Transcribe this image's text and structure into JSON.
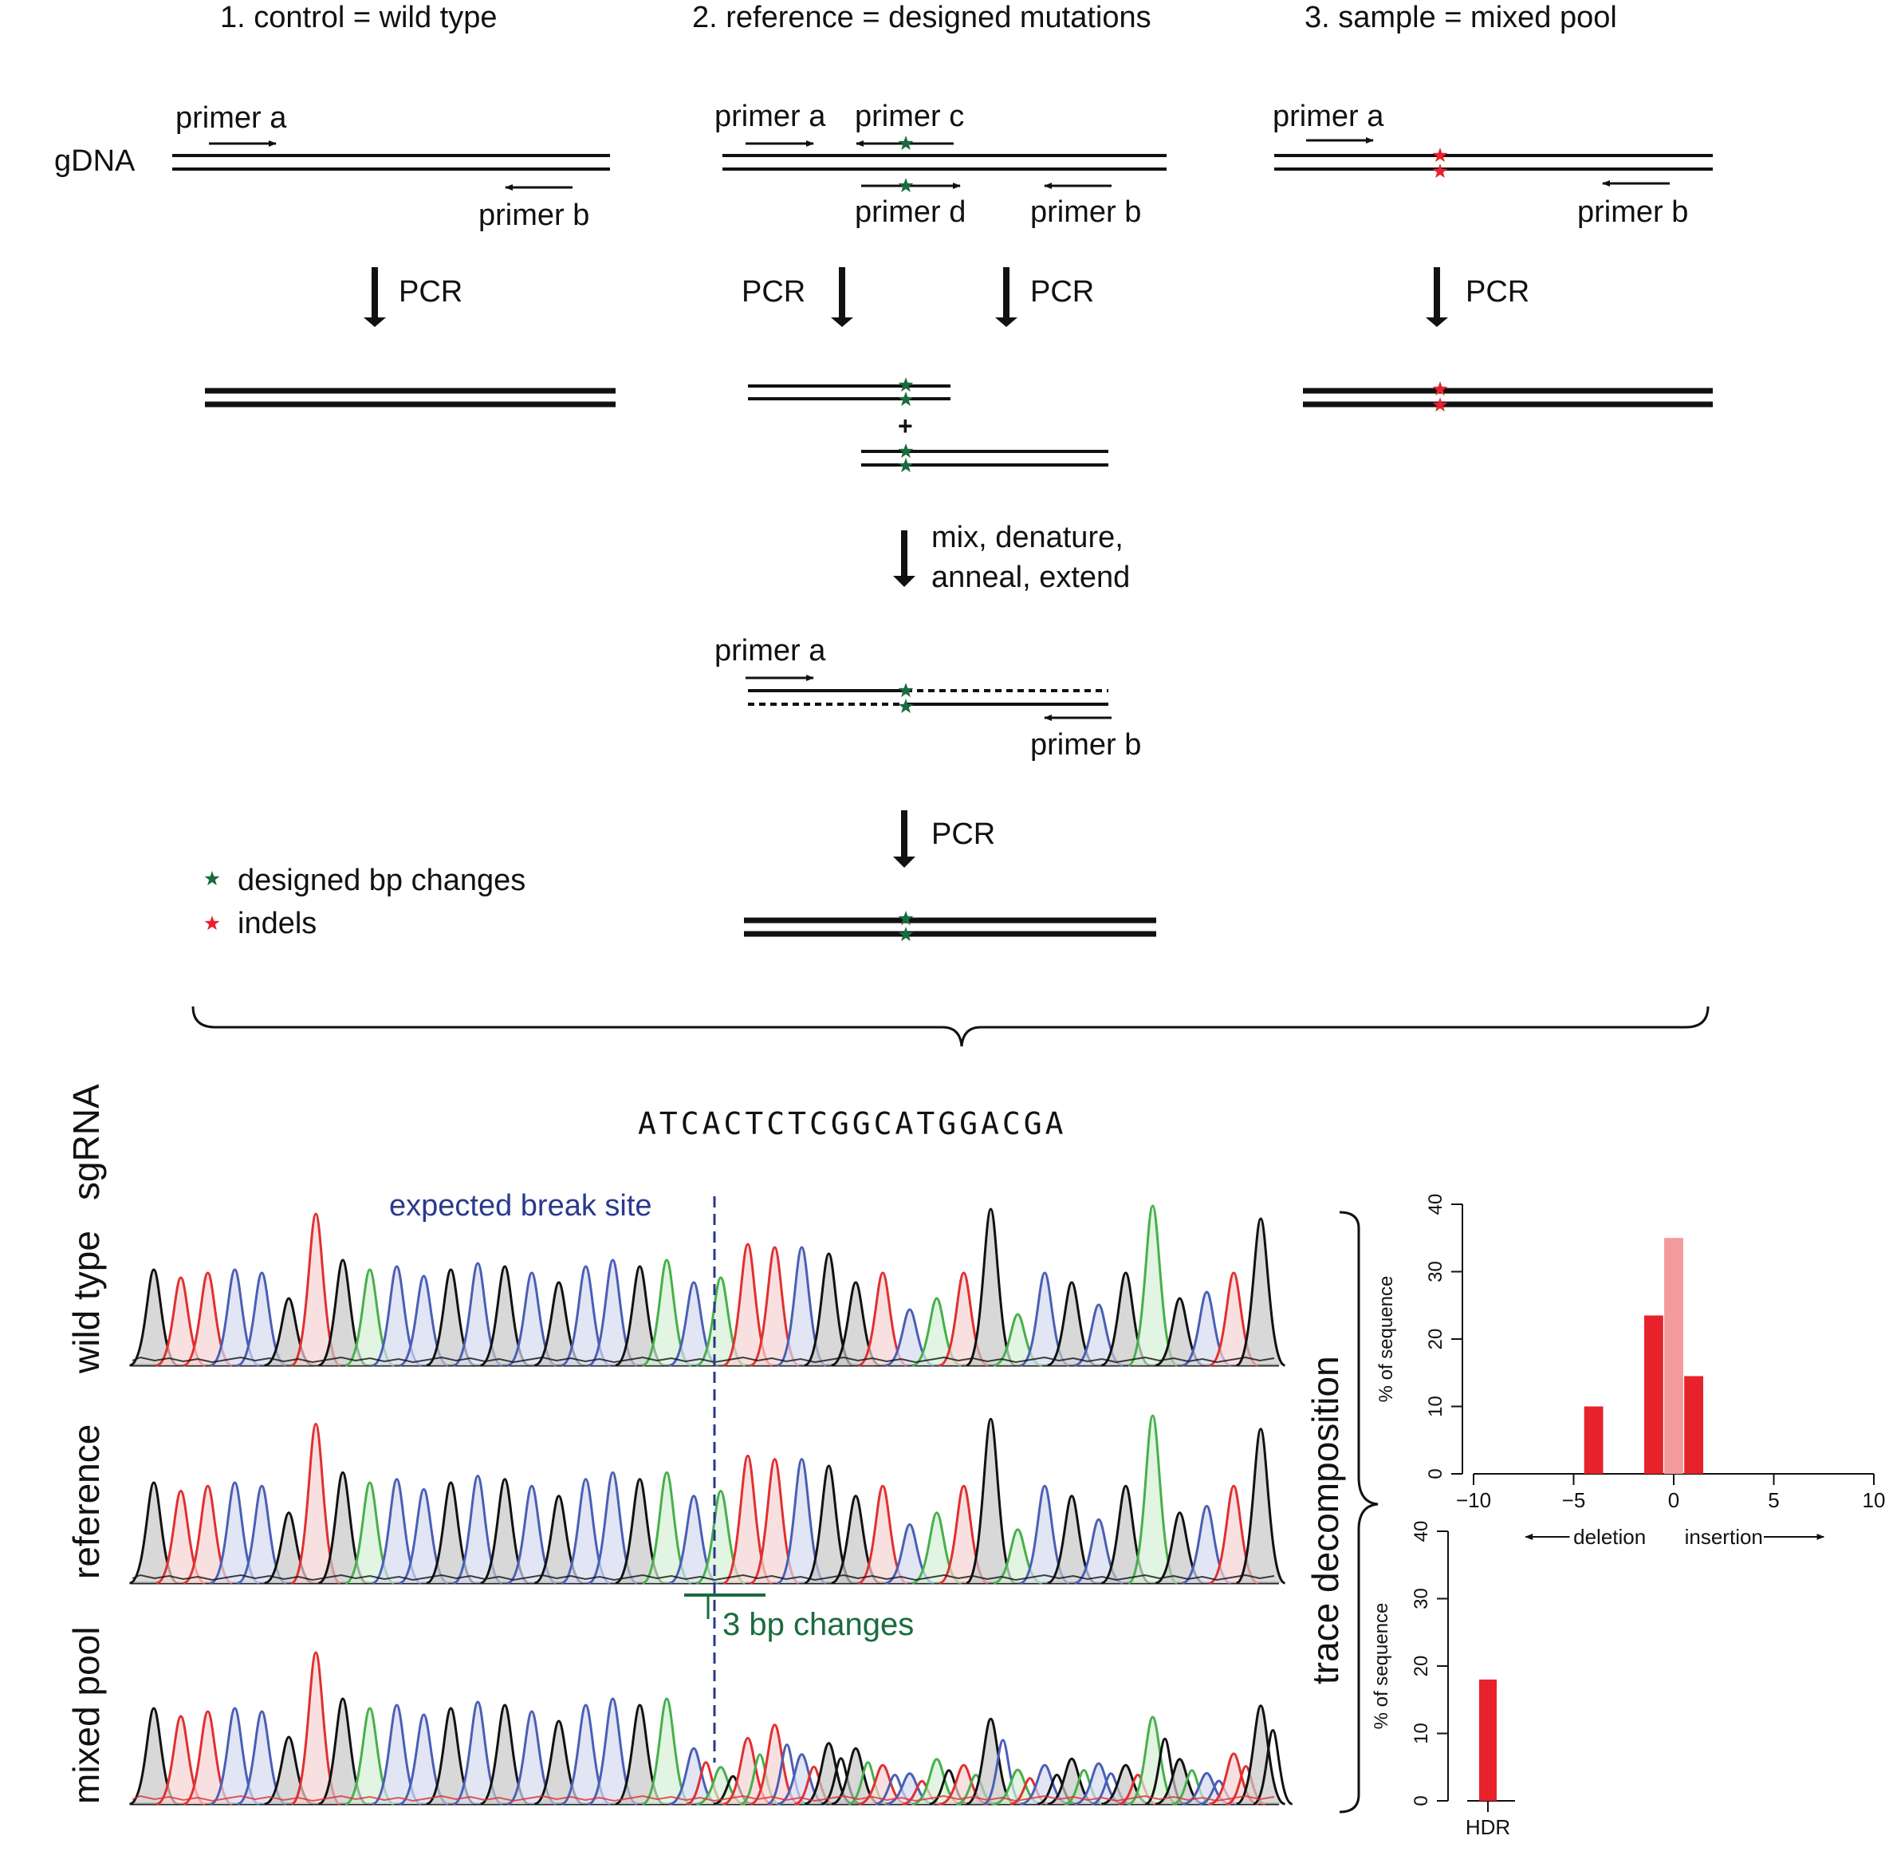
{
  "panels": {
    "control": "1. control = wild type",
    "reference": "2. reference = designed mutations",
    "sample": "3. sample = mixed pool"
  },
  "labels": {
    "gdna": "gDNA",
    "primer_a": "primer a",
    "primer_b": "primer b",
    "primer_c": "primer c",
    "primer_d": "primer d",
    "pcr": "PCR",
    "plus": "+",
    "mix_line1": "mix,  denature,",
    "mix_line2": "anneal, extend"
  },
  "legend": {
    "designed": "designed bp changes",
    "indels": "indels"
  },
  "sequencing": {
    "sgrna_label": "sgRNA",
    "sgrna_sequence": "ATCACTCTCGGCATGGACGA",
    "expected_break": "expected break site",
    "bp_changes": "3 bp changes",
    "rows": [
      "wild type",
      "reference",
      "mixed pool"
    ],
    "trace_decomposition": "trace decomposition"
  },
  "colors": {
    "green_star": "#1a6b3e",
    "red_star": "#e8222a",
    "trace_black": "#111111",
    "trace_red": "#e03030",
    "trace_blue": "#4a5fb5",
    "trace_green": "#46b04a",
    "break_line": "#2a3a8c",
    "bp_changes": "#1a6b3e",
    "bar": "#e8222a",
    "bar_light": "#f29a9c"
  },
  "chart_data": [
    {
      "type": "bar",
      "x": [
        -4,
        -1,
        0,
        1
      ],
      "values": [
        10,
        23.5,
        35,
        14.5
      ],
      "highlight_x": 0,
      "ylabel": "% of sequence",
      "xlabel_left": "deletion",
      "xlabel_right": "insertion",
      "xlim": [
        -10,
        10
      ],
      "ylim": [
        0,
        40
      ],
      "xticks": [
        "−10",
        "−5",
        "0",
        "5",
        "10"
      ],
      "yticks": [
        "0",
        "10",
        "20",
        "30",
        "40"
      ]
    },
    {
      "type": "bar",
      "categories": [
        "HDR"
      ],
      "values": [
        18
      ],
      "ylabel": "% of sequence",
      "ylim": [
        0,
        40
      ],
      "yticks": [
        "0",
        "10",
        "20",
        "30",
        "40"
      ]
    }
  ]
}
